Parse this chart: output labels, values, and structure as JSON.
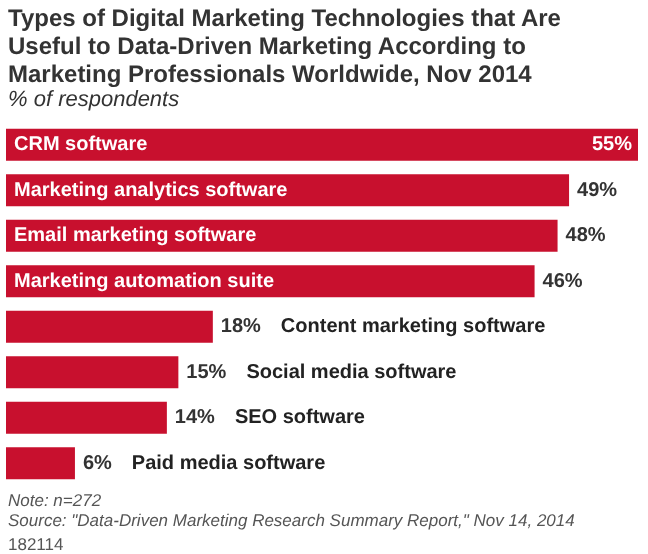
{
  "chart_data": {
    "type": "bar",
    "orientation": "horizontal",
    "title": "Types of Digital Marketing Technologies that Are Useful to Data-Driven Marketing According to Marketing Professionals Worldwide, Nov 2014",
    "subtitle": "% of respondents",
    "categories": [
      "CRM software",
      "Marketing analytics software",
      "Email marketing software",
      "Marketing automation suite",
      "Content marketing software",
      "Social media software",
      "SEO software",
      "Paid media software"
    ],
    "values": [
      55,
      49,
      48,
      46,
      18,
      15,
      14,
      6
    ],
    "value_labels": [
      "55%",
      "49%",
      "48%",
      "46%",
      "18%",
      "15%",
      "14%",
      "6%"
    ],
    "color": "#c8102e",
    "tick_labels": false,
    "annotations": [
      "Note: n=272",
      "Source: \"Data-Driven Marketing Research Summary Report,\" Nov 14, 2014",
      "182114"
    ]
  }
}
